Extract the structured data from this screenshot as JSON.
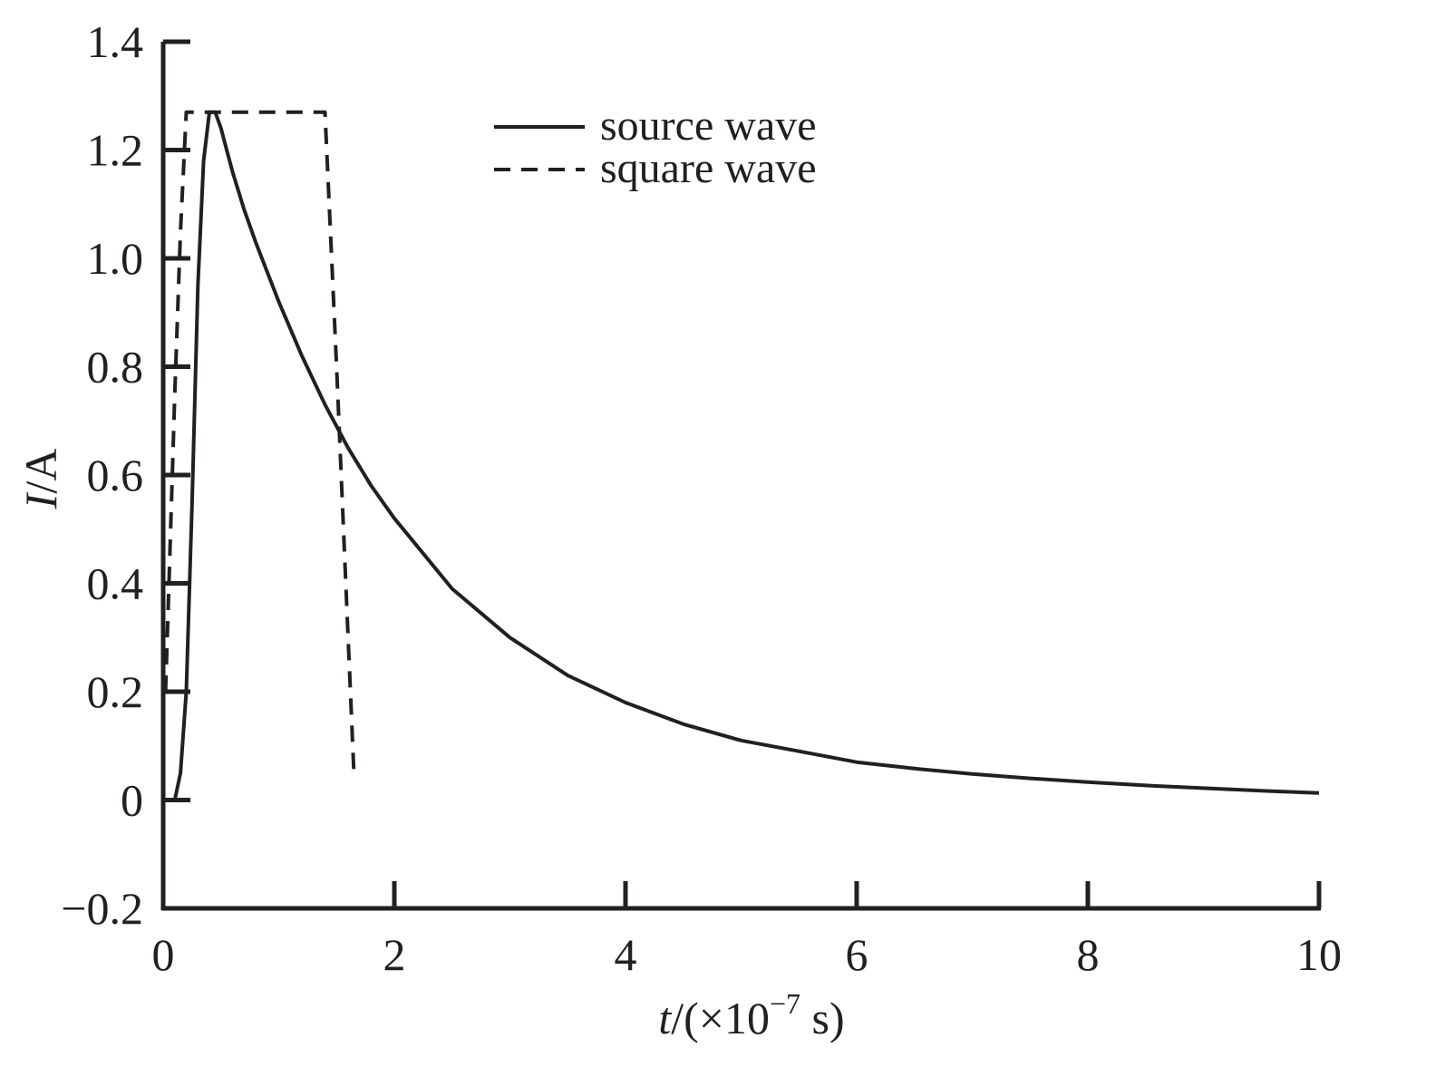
{
  "colors": {
    "axis": "#231f20",
    "series_source": "#231f20",
    "series_square": "#231f20",
    "background": "#ffffff"
  },
  "chart_data": {
    "type": "line",
    "title": "",
    "xlabel": {
      "var": "t",
      "rest_prefix": "/(×10",
      "exponent": "−7",
      "rest_suffix": " s)"
    },
    "ylabel": {
      "var": "I",
      "rest": "/A"
    },
    "xlim": [
      0,
      10
    ],
    "ylim": [
      -0.2,
      1.4
    ],
    "x_ticks": [
      0,
      2,
      4,
      6,
      8,
      10
    ],
    "x_tick_labels": [
      "0",
      "2",
      "4",
      "6",
      "8",
      "10"
    ],
    "y_ticks": [
      -0.2,
      0,
      0.2,
      0.4,
      0.6,
      0.8,
      1.0,
      1.2,
      1.4
    ],
    "y_tick_labels": [
      "−0.2",
      "0",
      "0.2",
      "0.4",
      "0.6",
      "0.8",
      "1.0",
      "1.2",
      "1.4"
    ],
    "grid": false,
    "legend_position": "top-center",
    "series": [
      {
        "name": "source wave",
        "style": "solid",
        "x": [
          0.05,
          0.1,
          0.15,
          0.2,
          0.25,
          0.3,
          0.35,
          0.4,
          0.45,
          0.5,
          0.55,
          0.6,
          0.7,
          0.8,
          1.0,
          1.2,
          1.4,
          1.6,
          1.8,
          2.0,
          2.5,
          3.0,
          3.5,
          4.0,
          4.5,
          5.0,
          5.5,
          6.0,
          6.5,
          7.0,
          7.5,
          8.0,
          8.5,
          9.0,
          9.5,
          10.0
        ],
        "y": [
          0.0,
          0.0,
          0.05,
          0.2,
          0.55,
          0.95,
          1.18,
          1.27,
          1.27,
          1.24,
          1.2,
          1.16,
          1.09,
          1.03,
          0.92,
          0.82,
          0.73,
          0.65,
          0.58,
          0.52,
          0.39,
          0.3,
          0.23,
          0.18,
          0.14,
          0.11,
          0.09,
          0.07,
          0.058,
          0.048,
          0.04,
          0.033,
          0.027,
          0.022,
          0.017,
          0.013
        ]
      },
      {
        "name": "square wave",
        "style": "dashed",
        "x": [
          0.02,
          0.05,
          0.1,
          0.15,
          0.2,
          0.25,
          1.4,
          1.5,
          1.6,
          1.65
        ],
        "y": [
          0.2,
          0.4,
          0.75,
          1.05,
          1.27,
          1.27,
          1.27,
          0.8,
          0.3,
          0.05
        ]
      }
    ]
  }
}
